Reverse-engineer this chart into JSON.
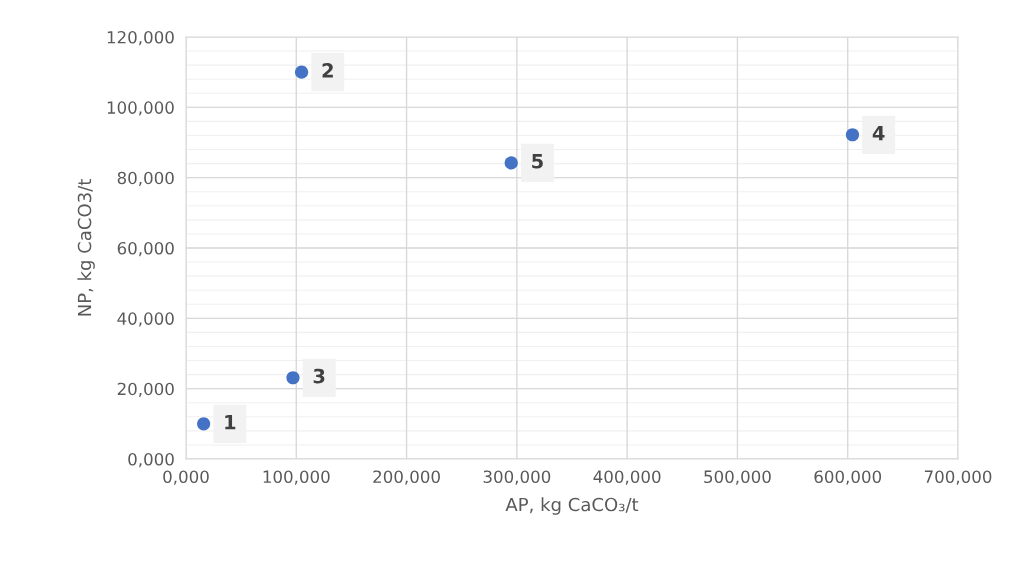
{
  "chart_data": {
    "type": "scatter",
    "xlabel": "AP, kg CaCO₃/t",
    "ylabel": "NP, kg CaCO3/t",
    "series": [
      {
        "color": "#4472c4",
        "x": [
          16,
          104.8,
          97,
          604.3,
          294.9
        ],
        "values": [
          10,
          110,
          23.1,
          92.2,
          84.2
        ]
      }
    ],
    "annotations": [
      {
        "text": "1",
        "x": 16,
        "y": 10
      },
      {
        "text": "2",
        "x": 104.8,
        "y": 110
      },
      {
        "text": "3",
        "x": 97,
        "y": 23.1
      },
      {
        "text": "4",
        "x": 604.3,
        "y": 92.2
      },
      {
        "text": "5",
        "x": 294.9,
        "y": 84.2
      }
    ],
    "xlim": [
      0,
      700
    ],
    "ylim": [
      0,
      120
    ],
    "xticks": [
      {
        "value": 0,
        "label": "0,000"
      },
      {
        "value": 100,
        "label": "100,000"
      },
      {
        "value": 200,
        "label": "200,000"
      },
      {
        "value": 300,
        "label": "300,000"
      },
      {
        "value": 400,
        "label": "400,000"
      },
      {
        "value": 500,
        "label": "500,000"
      },
      {
        "value": 600,
        "label": "600,000"
      },
      {
        "value": 700,
        "label": "700,000"
      }
    ],
    "yticks": [
      {
        "value": 0,
        "label": "0,000"
      },
      {
        "value": 20,
        "label": "20,000"
      },
      {
        "value": 40,
        "label": "40,000"
      },
      {
        "value": 60,
        "label": "60,000"
      },
      {
        "value": 80,
        "label": "80,000"
      },
      {
        "value": 100,
        "label": "100,000"
      },
      {
        "value": 120,
        "label": "120,000"
      }
    ],
    "grid": true,
    "marker": "circle"
  }
}
